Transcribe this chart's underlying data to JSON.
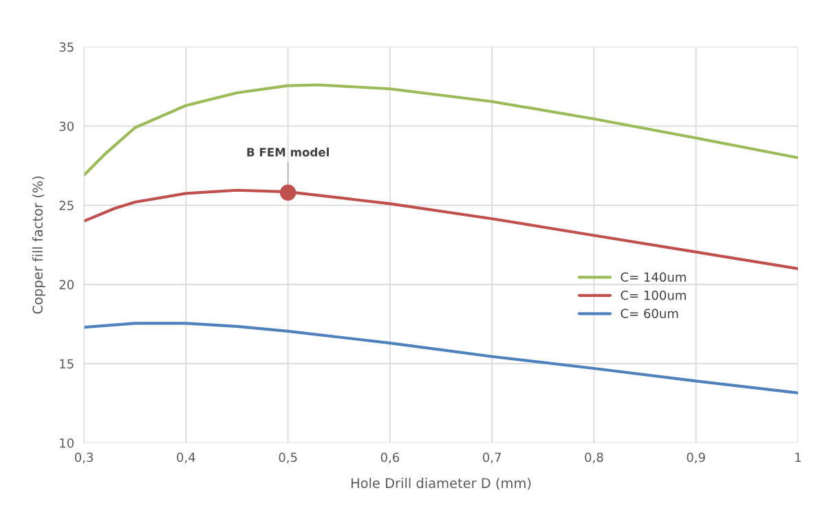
{
  "chart_data": {
    "type": "line",
    "xlabel": "Hole Drill diameter D (mm)",
    "ylabel": "Copper fill factor (%)",
    "xlim": [
      0.3,
      1.0
    ],
    "ylim": [
      10,
      35
    ],
    "xticks": [
      {
        "value": 0.3,
        "label": "0,3"
      },
      {
        "value": 0.4,
        "label": "0,4"
      },
      {
        "value": 0.5,
        "label": "0,5"
      },
      {
        "value": 0.6,
        "label": "0,6"
      },
      {
        "value": 0.7,
        "label": "0,7"
      },
      {
        "value": 0.8,
        "label": "0,8"
      },
      {
        "value": 0.9,
        "label": "0,9"
      },
      {
        "value": 1.0,
        "label": "1"
      }
    ],
    "yticks": [
      10,
      15,
      20,
      25,
      30,
      35
    ],
    "grid": true,
    "legend": "right",
    "marker": "none",
    "line_style": "solid",
    "series": [
      {
        "name": "C= 140um",
        "color": "#9bbb59",
        "x": [
          0.3,
          0.32,
          0.35,
          0.4,
          0.45,
          0.5,
          0.53,
          0.6,
          0.7,
          0.8,
          0.9,
          1.0
        ],
        "values": [
          26.9,
          28.2,
          29.9,
          31.3,
          32.1,
          32.55,
          32.6,
          32.35,
          31.55,
          30.45,
          29.25,
          28.0
        ]
      },
      {
        "name": "C= 100um",
        "color": "#c0504d",
        "x": [
          0.3,
          0.33,
          0.35,
          0.4,
          0.45,
          0.5,
          0.6,
          0.7,
          0.8,
          0.9,
          1.0
        ],
        "values": [
          24.0,
          24.8,
          25.2,
          25.75,
          25.95,
          25.85,
          25.1,
          24.15,
          23.1,
          22.05,
          21.0
        ]
      },
      {
        "name": "C= 60um",
        "color": "#4f81bd",
        "x": [
          0.3,
          0.35,
          0.4,
          0.45,
          0.5,
          0.6,
          0.7,
          0.8,
          0.9,
          1.0
        ],
        "values": [
          17.3,
          17.55,
          17.55,
          17.35,
          17.05,
          16.3,
          15.45,
          14.7,
          13.9,
          13.15
        ]
      },
      {
        "type": "scatter",
        "color": "#c0504d",
        "marker": "circle",
        "x": [
          0.5
        ],
        "values": [
          25.8
        ]
      }
    ],
    "annotations": [
      {
        "text": "B FEM model",
        "x": 0.5,
        "y": 25.8
      }
    ]
  }
}
